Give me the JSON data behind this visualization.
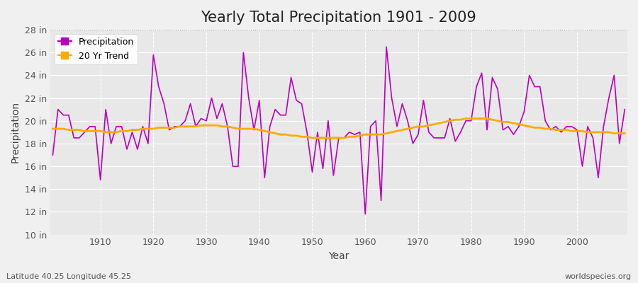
{
  "title": "Yearly Total Precipitation 1901 - 2009",
  "xlabel": "Year",
  "ylabel": "Precipitation",
  "subtitle_left": "Latitude 40.25 Longitude 45.25",
  "subtitle_right": "worldspecies.org",
  "ylim": [
    10,
    28
  ],
  "yticks": [
    10,
    12,
    14,
    16,
    18,
    20,
    22,
    24,
    26,
    28
  ],
  "ytick_labels": [
    "10 in",
    "12 in",
    "14 in",
    "16 in",
    "18 in",
    "20 in",
    "22 in",
    "24 in",
    "26 in",
    "28 in"
  ],
  "years": [
    1901,
    1902,
    1903,
    1904,
    1905,
    1906,
    1907,
    1908,
    1909,
    1910,
    1911,
    1912,
    1913,
    1914,
    1915,
    1916,
    1917,
    1918,
    1919,
    1920,
    1921,
    1922,
    1923,
    1924,
    1925,
    1926,
    1927,
    1928,
    1929,
    1930,
    1931,
    1932,
    1933,
    1934,
    1935,
    1936,
    1937,
    1938,
    1939,
    1940,
    1941,
    1942,
    1943,
    1944,
    1945,
    1946,
    1947,
    1948,
    1949,
    1950,
    1951,
    1952,
    1953,
    1954,
    1955,
    1956,
    1957,
    1958,
    1959,
    1960,
    1961,
    1962,
    1963,
    1964,
    1965,
    1966,
    1967,
    1968,
    1969,
    1970,
    1971,
    1972,
    1973,
    1974,
    1975,
    1976,
    1977,
    1978,
    1979,
    1980,
    1981,
    1982,
    1983,
    1984,
    1985,
    1986,
    1987,
    1988,
    1989,
    1990,
    1991,
    1992,
    1993,
    1994,
    1995,
    1996,
    1997,
    1998,
    1999,
    2000,
    2001,
    2002,
    2003,
    2004,
    2005,
    2006,
    2007,
    2008,
    2009
  ],
  "precip": [
    17.0,
    21.0,
    20.5,
    20.5,
    18.5,
    18.5,
    19.0,
    19.5,
    19.5,
    14.8,
    21.0,
    18.0,
    19.5,
    19.5,
    17.5,
    19.0,
    17.5,
    19.5,
    18.0,
    25.8,
    23.0,
    21.5,
    19.2,
    19.5,
    19.5,
    20.0,
    21.5,
    19.5,
    20.2,
    20.0,
    22.0,
    20.2,
    21.5,
    19.5,
    16.0,
    16.0,
    26.0,
    22.0,
    19.2,
    21.8,
    15.0,
    19.5,
    21.0,
    20.5,
    20.5,
    23.8,
    21.8,
    21.5,
    19.0,
    15.5,
    19.0,
    15.8,
    20.0,
    15.2,
    18.5,
    18.5,
    19.0,
    18.8,
    19.0,
    11.8,
    19.5,
    20.0,
    13.0,
    26.5,
    22.0,
    19.5,
    21.5,
    20.0,
    18.0,
    18.8,
    21.8,
    19.0,
    18.5,
    18.5,
    18.5,
    20.2,
    18.2,
    19.0,
    20.0,
    20.0,
    23.0,
    24.2,
    19.2,
    23.8,
    22.8,
    19.2,
    19.5,
    18.8,
    19.5,
    20.8,
    24.0,
    23.0,
    23.0,
    20.0,
    19.2,
    19.5,
    19.0,
    19.5,
    19.5,
    19.2,
    16.0,
    19.5,
    18.5,
    15.0,
    19.5,
    22.0,
    24.0,
    18.0,
    21.0
  ],
  "trend": [
    19.3,
    19.3,
    19.3,
    19.2,
    19.2,
    19.2,
    19.1,
    19.1,
    19.1,
    19.1,
    19.0,
    19.0,
    19.0,
    19.1,
    19.1,
    19.2,
    19.2,
    19.3,
    19.3,
    19.3,
    19.4,
    19.4,
    19.4,
    19.4,
    19.5,
    19.5,
    19.5,
    19.5,
    19.6,
    19.6,
    19.6,
    19.6,
    19.5,
    19.5,
    19.4,
    19.3,
    19.3,
    19.3,
    19.3,
    19.2,
    19.1,
    19.0,
    18.9,
    18.8,
    18.8,
    18.7,
    18.7,
    18.6,
    18.6,
    18.5,
    18.5,
    18.5,
    18.5,
    18.5,
    18.5,
    18.5,
    18.6,
    18.6,
    18.7,
    18.8,
    18.8,
    18.8,
    18.8,
    18.9,
    19.0,
    19.1,
    19.2,
    19.3,
    19.4,
    19.5,
    19.5,
    19.6,
    19.7,
    19.8,
    19.9,
    20.0,
    20.1,
    20.1,
    20.2,
    20.2,
    20.2,
    20.2,
    20.2,
    20.1,
    20.0,
    19.9,
    19.9,
    19.8,
    19.7,
    19.6,
    19.5,
    19.4,
    19.4,
    19.3,
    19.3,
    19.2,
    19.2,
    19.2,
    19.1,
    19.1,
    19.1,
    19.0,
    19.0,
    19.0,
    19.0,
    19.0,
    18.9,
    18.9,
    18.9
  ],
  "precip_color": "#bb00bb",
  "trend_color": "#ffaa00",
  "bg_color": "#f0f0f0",
  "plot_bg_color": "#e8e8e8",
  "grid_color": "#ffffff",
  "title_fontsize": 15,
  "label_fontsize": 10,
  "tick_fontsize": 9
}
